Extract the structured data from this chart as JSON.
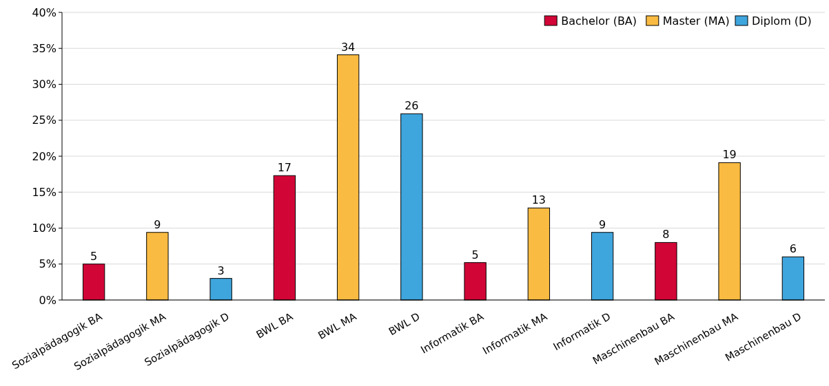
{
  "chart_data": {
    "type": "bar",
    "categories": [
      "Sozialpädagogik BA",
      "Sozialpädagogik MA",
      "Sozialpädagogik D",
      "BWL BA",
      "BWL MA",
      "BWL D",
      "Informatik BA",
      "Informatik MA",
      "Informatik D",
      "Maschinenbau BA",
      "Maschinenbau MA",
      "Maschinenbau D"
    ],
    "series": [
      {
        "name": "Bachelor (BA)",
        "color": "#d20537",
        "values": [
          5.0,
          null,
          null,
          17.3,
          null,
          null,
          5.2,
          null,
          null,
          8.0,
          null,
          null
        ],
        "value_labels": [
          "5",
          null,
          null,
          "17",
          null,
          null,
          "5",
          null,
          null,
          "8",
          null,
          null
        ]
      },
      {
        "name": "Master (MA)",
        "color": "#f9bb42",
        "values": [
          null,
          9.4,
          null,
          null,
          34.1,
          null,
          null,
          12.8,
          null,
          null,
          19.1,
          null
        ],
        "value_labels": [
          null,
          "9",
          null,
          null,
          "34",
          null,
          null,
          "13",
          null,
          null,
          "19",
          null
        ]
      },
      {
        "name": "Diplom (D)",
        "color": "#3fa5dd",
        "values": [
          null,
          null,
          3.0,
          null,
          null,
          25.9,
          null,
          null,
          9.4,
          null,
          null,
          6.0
        ],
        "value_labels": [
          null,
          null,
          "3",
          null,
          null,
          "26",
          null,
          null,
          "9",
          null,
          null,
          "6"
        ]
      }
    ],
    "ylim": [
      0,
      40
    ],
    "yticks": [
      {
        "value": 0,
        "label": "0%"
      },
      {
        "value": 5,
        "label": "5%"
      },
      {
        "value": 10,
        "label": "10%"
      },
      {
        "value": 15,
        "label": "15%"
      },
      {
        "value": 20,
        "label": "20%"
      },
      {
        "value": 25,
        "label": "25%"
      },
      {
        "value": 30,
        "label": "30%"
      },
      {
        "value": 35,
        "label": "35%"
      },
      {
        "value": 40,
        "label": "40%"
      }
    ],
    "grid": "y",
    "legend": "top right"
  }
}
